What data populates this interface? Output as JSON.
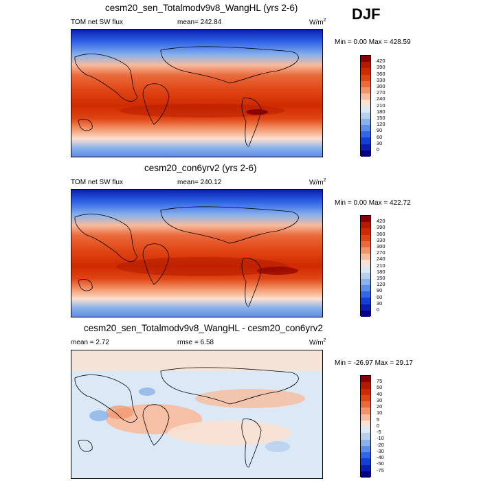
{
  "season": "DJF",
  "panels": [
    {
      "title": "cesm20_sen_Totalmodv9v8_WangHL (yrs 2-6)",
      "left_label": "TOM net SW flux",
      "center_label": "mean= 242.84",
      "units_base": "W/m",
      "units_sup": "2",
      "minmax": "Min =   0.00 Max = 428.59"
    },
    {
      "title": "cesm20_con6yrv2 (yrs 2-6)",
      "left_label": "TOM net SW flux",
      "center_label": "mean= 240.12",
      "units_base": "W/m",
      "units_sup": "2",
      "minmax": "Min =   0.00 Max = 422.72"
    },
    {
      "title": "cesm20_sen_Totalmodv9v8_WangHL - cesm20_con6yrv2",
      "left_label": "mean =   2.72",
      "center_label": "rmse =   6.58",
      "units_base": "W/m",
      "units_sup": "2",
      "minmax": "Min = -26.97 Max = 29.17"
    }
  ],
  "colorbars": {
    "abs_levels": [
      "420",
      "390",
      "360",
      "330",
      "300",
      "270",
      "240",
      "210",
      "180",
      "150",
      "120",
      "90",
      "60",
      "30",
      "0"
    ],
    "abs_colors": [
      "#8b0000",
      "#b31b00",
      "#d02a00",
      "#e04514",
      "#ea6a3c",
      "#f29468",
      "#f7bb9d",
      "#fbe1d1",
      "#dbe9f6",
      "#b6d0ef",
      "#8ab2ea",
      "#5d8ee8",
      "#3166e8",
      "#1240d6",
      "#0a1fb0",
      "#00008b"
    ],
    "diff_levels": [
      "75",
      "50",
      "40",
      "30",
      "20",
      "10",
      "5",
      "0",
      "-5",
      "-10",
      "-20",
      "-30",
      "-40",
      "-50",
      "-75"
    ],
    "diff_colors": [
      "#8b0000",
      "#b31b00",
      "#d02a00",
      "#e04514",
      "#ea6a3c",
      "#f29468",
      "#f7bb9d",
      "#fbe1d1",
      "#dbe9f6",
      "#b6d0ef",
      "#8ab2ea",
      "#5d8ee8",
      "#3166e8",
      "#1240d6",
      "#0a1fb0",
      "#00008b"
    ]
  },
  "chart_data": [
    {
      "type": "heatmap",
      "title": "cesm20_sen_Totalmodv9v8_WangHL (yrs 2-6)",
      "variable": "TOM net SW flux",
      "units": "W/m2",
      "mean": 242.84,
      "min": 0.0,
      "max": 428.59,
      "levels": [
        0,
        30,
        60,
        90,
        120,
        150,
        180,
        210,
        240,
        270,
        300,
        330,
        360,
        390,
        420
      ]
    },
    {
      "type": "heatmap",
      "title": "cesm20_con6yrv2 (yrs 2-6)",
      "variable": "TOM net SW flux",
      "units": "W/m2",
      "mean": 240.12,
      "min": 0.0,
      "max": 422.72,
      "levels": [
        0,
        30,
        60,
        90,
        120,
        150,
        180,
        210,
        240,
        270,
        300,
        330,
        360,
        390,
        420
      ]
    },
    {
      "type": "heatmap",
      "title": "cesm20_sen_Totalmodv9v8_WangHL - cesm20_con6yrv2",
      "units": "W/m2",
      "mean": 2.72,
      "rmse": 6.58,
      "min": -26.97,
      "max": 29.17,
      "levels": [
        -75,
        -50,
        -40,
        -30,
        -20,
        -10,
        -5,
        0,
        5,
        10,
        20,
        30,
        40,
        50,
        75
      ]
    }
  ]
}
